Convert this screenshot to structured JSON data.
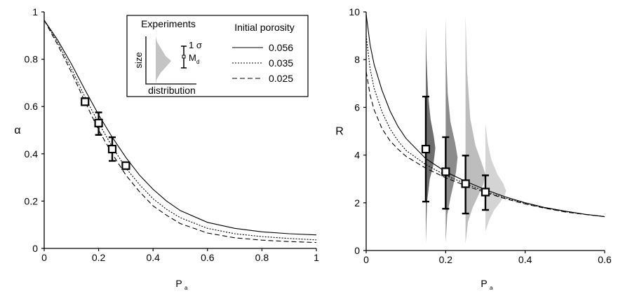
{
  "chart_data": [
    {
      "type": "line",
      "panel": "left",
      "xlabel": "P",
      "xlabel_sub": "a",
      "ylabel": "α",
      "xlim": [
        0,
        1
      ],
      "ylim": [
        0,
        1
      ],
      "xticks": [
        0,
        0.2,
        0.4,
        0.6,
        0.8,
        1
      ],
      "xtick_labels": [
        "0",
        "0.2",
        "0.4",
        "0.6",
        "0.8",
        "1"
      ],
      "yticks": [
        0,
        0.2,
        0.4,
        0.6,
        0.8,
        1
      ],
      "ytick_labels": [
        "0",
        "0.2",
        "0.4",
        "0.6",
        "0.8",
        "1"
      ],
      "grid": false,
      "legend_position": "top-right",
      "legend": {
        "experiments_title": "Experiments",
        "porosity_title": "Initial porosity",
        "size_label": "size",
        "distribution_label": "distribution",
        "sigma_label": "1 σ",
        "median_label": "M",
        "median_sub": "d"
      },
      "series": [
        {
          "name": "0.056",
          "style": "solid",
          "x": [
            0,
            0.05,
            0.1,
            0.15,
            0.2,
            0.25,
            0.3,
            0.35,
            0.4,
            0.45,
            0.5,
            0.6,
            0.7,
            0.8,
            0.9,
            1.0
          ],
          "y": [
            0.965,
            0.88,
            0.78,
            0.67,
            0.565,
            0.47,
            0.385,
            0.31,
            0.25,
            0.2,
            0.16,
            0.11,
            0.085,
            0.07,
            0.062,
            0.057
          ]
        },
        {
          "name": "0.035",
          "style": "dotted",
          "x": [
            0,
            0.05,
            0.1,
            0.15,
            0.2,
            0.25,
            0.3,
            0.35,
            0.4,
            0.45,
            0.5,
            0.6,
            0.7,
            0.8,
            0.9,
            1.0
          ],
          "y": [
            0.965,
            0.87,
            0.76,
            0.64,
            0.53,
            0.43,
            0.34,
            0.27,
            0.21,
            0.165,
            0.13,
            0.085,
            0.062,
            0.05,
            0.042,
            0.036
          ]
        },
        {
          "name": "0.025",
          "style": "dashed",
          "x": [
            0,
            0.05,
            0.1,
            0.15,
            0.2,
            0.25,
            0.3,
            0.35,
            0.4,
            0.45,
            0.5,
            0.6,
            0.7,
            0.8,
            0.9,
            1.0
          ],
          "y": [
            0.965,
            0.86,
            0.745,
            0.62,
            0.5,
            0.4,
            0.31,
            0.24,
            0.18,
            0.14,
            0.105,
            0.065,
            0.045,
            0.035,
            0.029,
            0.025
          ]
        }
      ],
      "experiments": [
        {
          "x": 0.15,
          "median": 0.62,
          "low": 0.61,
          "high": 0.635
        },
        {
          "x": 0.2,
          "median": 0.53,
          "low": 0.48,
          "high": 0.575
        },
        {
          "x": 0.25,
          "median": 0.42,
          "low": 0.37,
          "high": 0.47
        },
        {
          "x": 0.3,
          "median": 0.35,
          "low": 0.345,
          "high": 0.36
        }
      ]
    },
    {
      "type": "line",
      "panel": "right",
      "xlabel": "P",
      "xlabel_sub": "a",
      "ylabel": "R",
      "xlim": [
        0,
        0.6
      ],
      "ylim": [
        0,
        10
      ],
      "xticks": [
        0,
        0.2,
        0.4,
        0.6
      ],
      "xtick_labels": [
        "0",
        "0.2",
        "0.4",
        "0.6"
      ],
      "yticks": [
        0,
        2,
        4,
        6,
        8,
        10
      ],
      "ytick_labels": [
        "0",
        "2",
        "4",
        "6",
        "8",
        "10"
      ],
      "grid": false,
      "series": [
        {
          "name": "0.056",
          "style": "solid",
          "x": [
            0,
            0.01,
            0.02,
            0.04,
            0.06,
            0.08,
            0.1,
            0.15,
            0.2,
            0.25,
            0.3,
            0.35,
            0.4,
            0.45,
            0.5,
            0.55,
            0.6
          ],
          "y": [
            9.9,
            8.6,
            7.8,
            6.7,
            5.85,
            5.2,
            4.7,
            3.85,
            3.3,
            2.9,
            2.55,
            2.25,
            2.0,
            1.8,
            1.65,
            1.52,
            1.42
          ]
        },
        {
          "name": "0.035",
          "style": "dotted",
          "x": [
            0,
            0.01,
            0.02,
            0.04,
            0.06,
            0.08,
            0.1,
            0.15,
            0.2,
            0.25,
            0.3,
            0.35,
            0.4,
            0.45,
            0.5,
            0.55,
            0.6
          ],
          "y": [
            9.0,
            7.6,
            6.8,
            5.8,
            5.1,
            4.6,
            4.2,
            3.6,
            3.15,
            2.8,
            2.48,
            2.2,
            1.97,
            1.78,
            1.63,
            1.52,
            1.42
          ]
        },
        {
          "name": "0.025",
          "style": "dashed",
          "x": [
            0,
            0.01,
            0.02,
            0.04,
            0.06,
            0.08,
            0.1,
            0.15,
            0.2,
            0.25,
            0.3,
            0.35,
            0.4,
            0.45,
            0.5,
            0.55,
            0.6
          ],
          "y": [
            7.5,
            6.5,
            5.9,
            5.1,
            4.6,
            4.25,
            3.95,
            3.45,
            3.05,
            2.72,
            2.43,
            2.17,
            1.95,
            1.77,
            1.62,
            1.51,
            1.42
          ]
        }
      ],
      "experiments": [
        {
          "x": 0.15,
          "median": 4.25,
          "low": 2.05,
          "high": 6.45,
          "shade": "#6e6e6e",
          "dist_y": [
            0.3,
            2.0,
            3.0,
            3.5,
            4.0,
            4.3,
            4.8,
            5.5,
            6.5,
            8.0,
            9.4
          ],
          "dist_w": [
            0.0,
            0.003,
            0.01,
            0.018,
            0.022,
            0.024,
            0.02,
            0.012,
            0.006,
            0.002,
            0.0
          ]
        },
        {
          "x": 0.2,
          "median": 3.3,
          "low": 1.75,
          "high": 4.75,
          "shade": "#8c8c8c",
          "dist_y": [
            0.3,
            1.5,
            2.2,
            2.8,
            3.3,
            3.9,
            4.5,
            5.4,
            6.6,
            8.0,
            9.8
          ],
          "dist_w": [
            0.0,
            0.004,
            0.012,
            0.02,
            0.026,
            0.03,
            0.024,
            0.012,
            0.005,
            0.002,
            0.0
          ]
        },
        {
          "x": 0.25,
          "median": 2.8,
          "low": 1.55,
          "high": 3.98,
          "shade": "#bdbdbd",
          "dist_y": [
            0.3,
            1.2,
            1.8,
            2.3,
            2.8,
            3.2,
            3.7,
            4.4,
            5.5,
            7.5,
            9.8
          ],
          "dist_w": [
            0.0,
            0.006,
            0.018,
            0.032,
            0.045,
            0.05,
            0.04,
            0.025,
            0.012,
            0.004,
            0.0
          ]
        },
        {
          "x": 0.3,
          "median": 2.45,
          "low": 1.7,
          "high": 3.15,
          "shade": "#d4d4d4",
          "dist_y": [
            0.8,
            1.3,
            1.7,
            2.0,
            2.3,
            2.5,
            2.8,
            3.2,
            3.8,
            4.5,
            5.3
          ],
          "dist_w": [
            0.0,
            0.01,
            0.022,
            0.036,
            0.048,
            0.052,
            0.045,
            0.03,
            0.015,
            0.006,
            0.0
          ]
        }
      ]
    }
  ]
}
